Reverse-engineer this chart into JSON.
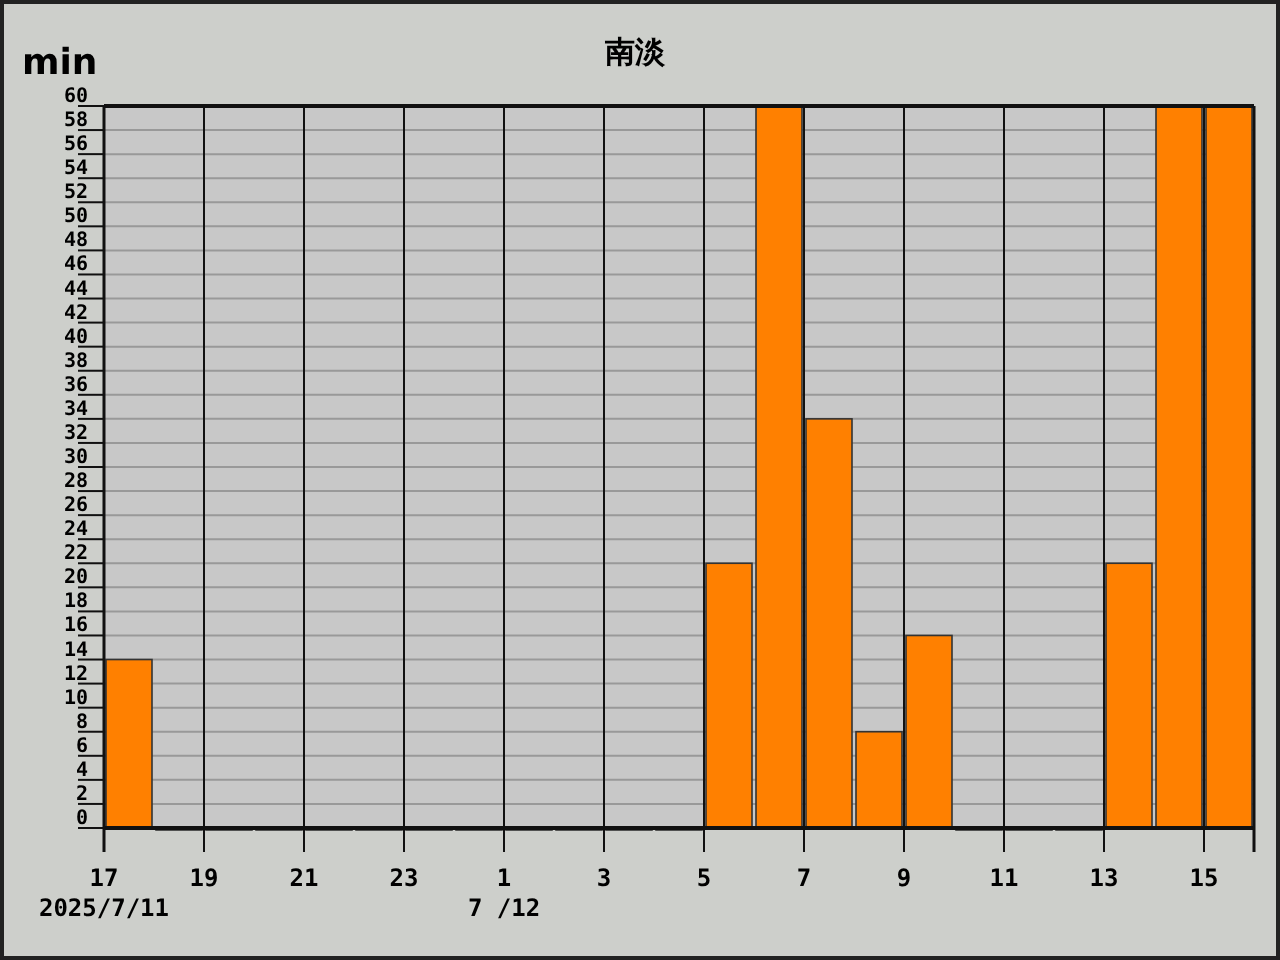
{
  "chart_data": {
    "type": "bar",
    "title": "南淡",
    "ylabel": "min",
    "x": [
      "2025-07-11T17:30",
      "2025-07-11T18:30",
      "2025-07-11T19:30",
      "2025-07-11T20:30",
      "2025-07-11T21:30",
      "2025-07-11T22:30",
      "2025-07-11T23:30",
      "2025-07-12T00:30",
      "2025-07-12T01:30",
      "2025-07-12T02:30",
      "2025-07-12T03:30",
      "2025-07-12T04:30",
      "2025-07-12T05:30",
      "2025-07-12T06:30",
      "2025-07-12T07:30",
      "2025-07-12T08:30",
      "2025-07-12T09:30",
      "2025-07-12T10:30",
      "2025-07-12T11:30",
      "2025-07-12T12:30",
      "2025-07-12T13:30",
      "2025-07-12T14:30",
      "2025-07-12T15:30"
    ],
    "values": [
      14,
      0,
      0,
      0,
      0,
      0,
      0,
      0,
      0,
      0,
      0,
      0,
      22,
      60,
      34,
      8,
      16,
      0,
      0,
      0,
      22,
      60,
      60
    ],
    "color": "#ff8000",
    "xlim": [
      "2025-07-11T17:00",
      "2025-07-12T16:00"
    ],
    "xticks": [
      {
        "value": "2025-07-11T17:00",
        "label": "17"
      },
      {
        "value": "2025-07-11T19:00",
        "label": "19"
      },
      {
        "value": "2025-07-11T21:00",
        "label": "21"
      },
      {
        "value": "2025-07-11T23:00",
        "label": "23"
      },
      {
        "value": "2025-07-12T01:00",
        "label": "1"
      },
      {
        "value": "2025-07-12T03:00",
        "label": "3"
      },
      {
        "value": "2025-07-12T05:00",
        "label": "5"
      },
      {
        "value": "2025-07-12T07:00",
        "label": "7"
      },
      {
        "value": "2025-07-12T09:00",
        "label": "9"
      },
      {
        "value": "2025-07-12T11:00",
        "label": "11"
      },
      {
        "value": "2025-07-12T13:00",
        "label": "13"
      },
      {
        "value": "2025-07-12T15:00",
        "label": "15"
      }
    ],
    "ylim": [
      0,
      60
    ],
    "yticks": [
      0,
      2,
      4,
      6,
      8,
      10,
      12,
      14,
      16,
      18,
      20,
      22,
      24,
      26,
      28,
      30,
      32,
      34,
      36,
      38,
      40,
      42,
      44,
      46,
      48,
      50,
      52,
      54,
      56,
      58,
      60
    ],
    "grid": true,
    "annotations": [
      "2025/7/11",
      "7 /12"
    ]
  }
}
